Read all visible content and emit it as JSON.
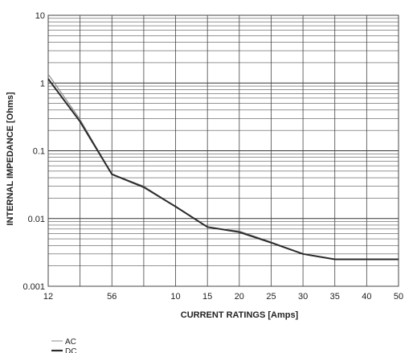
{
  "chart_data": {
    "type": "line",
    "title": "",
    "xlabel": "CURRENT RATINGS [Amps]",
    "ylabel": "INTERNAL IMPEDANCE [Ohms]",
    "x_tick_labels": [
      "12",
      "56",
      "10",
      "15",
      "20",
      "25",
      "30",
      "35",
      "40",
      "50"
    ],
    "y_scale": "log",
    "ylim": [
      0.001,
      10
    ],
    "y_tick_labels": [
      "10",
      "1",
      "0.1",
      "0.01",
      "0.001"
    ],
    "grid": true,
    "legend_placement": "bottom-left",
    "x": [
      "12",
      "",
      "56",
      "",
      "10",
      "15",
      "20",
      "25",
      "30",
      "35",
      "40",
      "50"
    ],
    "series": [
      {
        "name": "AC",
        "color": "#8c8c8c",
        "values": [
          1.35,
          0.29,
          0.045,
          0.03,
          0.015,
          0.0075,
          0.0065,
          0.0045,
          0.003,
          0.0025,
          0.0025,
          0.0025
        ]
      },
      {
        "name": "DC",
        "color": "#2b2b2b",
        "values": [
          1.15,
          0.27,
          0.045,
          0.029,
          0.015,
          0.0075,
          0.0063,
          0.0044,
          0.003,
          0.0025,
          0.0025,
          0.0025
        ]
      }
    ]
  }
}
